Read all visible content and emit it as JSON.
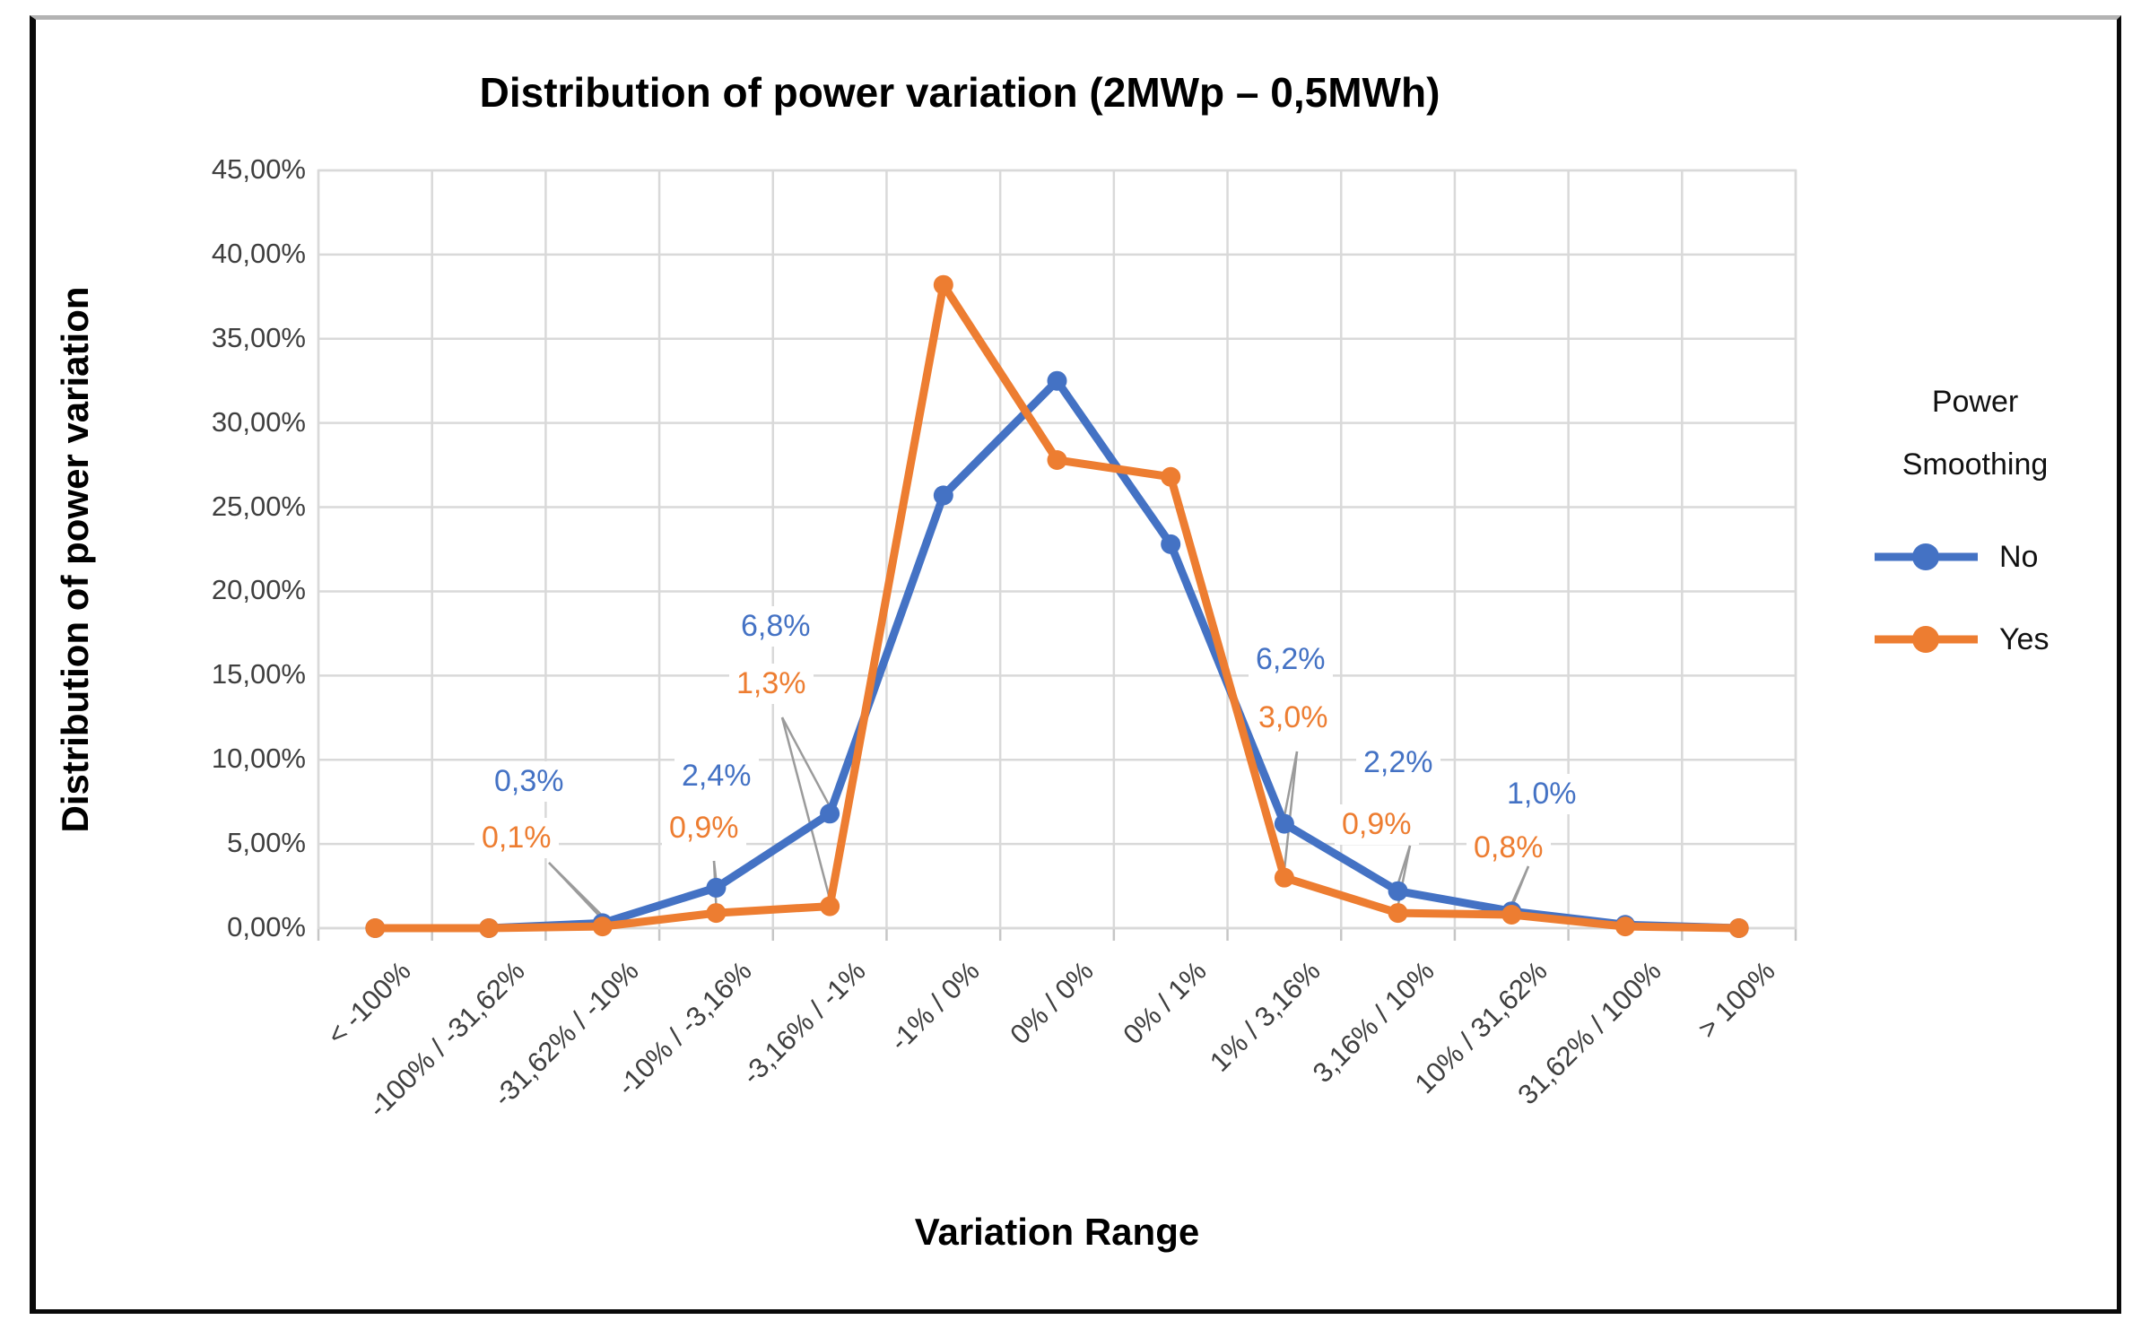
{
  "chart_data": {
    "type": "line",
    "title": "Distribution of power variation (2MWp – 0,5MWh)",
    "xlabel": "Variation Range",
    "ylabel": "Distribution of power variation",
    "categories": [
      "< -100%",
      "-100% / -31,62%",
      "-31,62% / -10%",
      "-10% / -3,16%",
      "-3,16% / -1%",
      "-1% / 0%",
      "0% / 0%",
      "0% / 1%",
      "1% / 3,16%",
      "3,16% / 10%",
      "10% / 31,62%",
      "31,62% / 100%",
      "> 100%"
    ],
    "ylim": [
      0,
      45
    ],
    "ytick_step": 5,
    "ytick_labels": [
      "0,00%",
      "5,00%",
      "10,00%",
      "15,00%",
      "20,00%",
      "25,00%",
      "30,00%",
      "35,00%",
      "40,00%",
      "45,00%"
    ],
    "grid": true,
    "legend": {
      "position": "right",
      "title_lines": [
        "Power",
        "Smoothing"
      ],
      "items": [
        "No",
        "Yes"
      ]
    },
    "series": [
      {
        "name": "No",
        "color": "#4472C4",
        "values": [
          0,
          0,
          0.3,
          2.4,
          6.8,
          25.7,
          32.5,
          22.8,
          6.2,
          2.2,
          1.0,
          0.2,
          0
        ]
      },
      {
        "name": "Yes",
        "color": "#ED7D31",
        "values": [
          0,
          0,
          0.1,
          0.9,
          1.3,
          38.2,
          27.8,
          26.8,
          3.0,
          0.9,
          0.8,
          0.1,
          0
        ]
      }
    ],
    "annotations": [
      {
        "category_index": 2,
        "labels": [
          "0,3%",
          "0,1%"
        ]
      },
      {
        "category_index": 3,
        "labels": [
          "2,4%",
          "0,9%"
        ]
      },
      {
        "category_index": 4,
        "labels": [
          "6,8%",
          "1,3%"
        ]
      },
      {
        "category_index": 8,
        "labels": [
          "6,2%",
          "3,0%"
        ]
      },
      {
        "category_index": 9,
        "labels": [
          "2,2%",
          "0,9%"
        ]
      },
      {
        "category_index": 10,
        "labels": [
          "1,0%",
          "0,8%"
        ]
      }
    ]
  },
  "colors": {
    "series_no": "#4472C4",
    "series_yes": "#ED7D31",
    "gridline": "#D9D9D9",
    "axis_line": "#C6C6C6",
    "axis_text": "#3F3F3F",
    "leader_line": "#9B9B9B",
    "title_text": "#000000"
  }
}
